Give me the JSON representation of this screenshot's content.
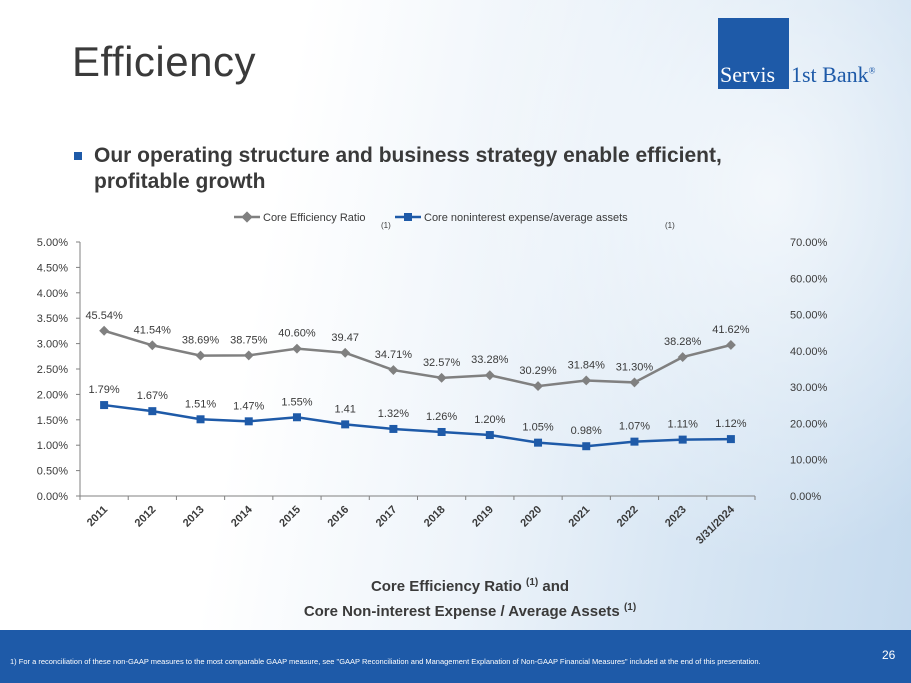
{
  "slide": {
    "title": "Efficiency",
    "bullet": "Our operating structure and business strategy enable efficient, profitable growth",
    "logo": {
      "part1": "Servis",
      "part2": "1st Bank",
      "reg": "®"
    },
    "caption_line1": "Core Efficiency Ratio",
    "caption_line2": "Core Non-interest Expense / Average Assets",
    "caption_sup": "(1)",
    "footnote": "1)      For a reconciliation of these non-GAAP measures to the most comparable GAAP measure, see \"GAAP Reconciliation and Management Explanation of Non-GAAP Financial Measures\" included at the end of this presentation.",
    "page_number": "26",
    "and_word": "and"
  },
  "chart_data": {
    "type": "line",
    "categories": [
      "2011",
      "2012",
      "2013",
      "2014",
      "2015",
      "2016",
      "2017",
      "2018",
      "2019",
      "2020",
      "2021",
      "2022",
      "2023",
      "3/31/2024"
    ],
    "series": [
      {
        "name": "Core Efficiency Ratio",
        "superscript": "(1)",
        "axis": "right",
        "color": "#808080",
        "marker": "diamond",
        "values": [
          45.54,
          41.54,
          38.69,
          38.75,
          40.6,
          39.47,
          34.71,
          32.57,
          33.28,
          30.29,
          31.84,
          31.3,
          38.28,
          41.62
        ],
        "labels": [
          "45.54%",
          "41.54%",
          "38.69%",
          "38.75%",
          "40.60%",
          "39.47",
          "34.71%",
          "32.57%",
          "33.28%",
          "30.29%",
          "31.84%",
          "31.30%",
          "38.28%",
          "41.62%"
        ]
      },
      {
        "name": "Core noninterest expense/average assets",
        "superscript": "(1)",
        "axis": "left",
        "color": "#1e5aa8",
        "marker": "square",
        "values": [
          1.79,
          1.67,
          1.51,
          1.47,
          1.55,
          1.41,
          1.32,
          1.26,
          1.2,
          1.05,
          0.98,
          1.07,
          1.11,
          1.12
        ],
        "labels": [
          "1.79%",
          "1.67%",
          "1.51%",
          "1.47%",
          "1.55%",
          "1.41",
          "1.32%",
          "1.26%",
          "1.20%",
          "1.05%",
          "0.98%",
          "1.07%",
          "1.11%",
          "1.12%"
        ]
      }
    ],
    "left_axis": {
      "ylim": [
        0,
        5
      ],
      "ticks": [
        0,
        0.5,
        1,
        1.5,
        2,
        2.5,
        3,
        3.5,
        4,
        4.5,
        5
      ],
      "tick_labels": [
        "0.00%",
        "0.50%",
        "1.00%",
        "1.50%",
        "2.00%",
        "2.50%",
        "3.00%",
        "3.50%",
        "4.00%",
        "4.50%",
        "5.00%"
      ]
    },
    "right_axis": {
      "ylim": [
        0,
        70
      ],
      "ticks": [
        0,
        10,
        20,
        30,
        40,
        50,
        60,
        70
      ],
      "tick_labels": [
        "0.00%",
        "10.00%",
        "20.00%",
        "30.00%",
        "40.00%",
        "50.00%",
        "60.00%",
        "70.00%"
      ]
    },
    "legend": "top",
    "grid": false
  }
}
